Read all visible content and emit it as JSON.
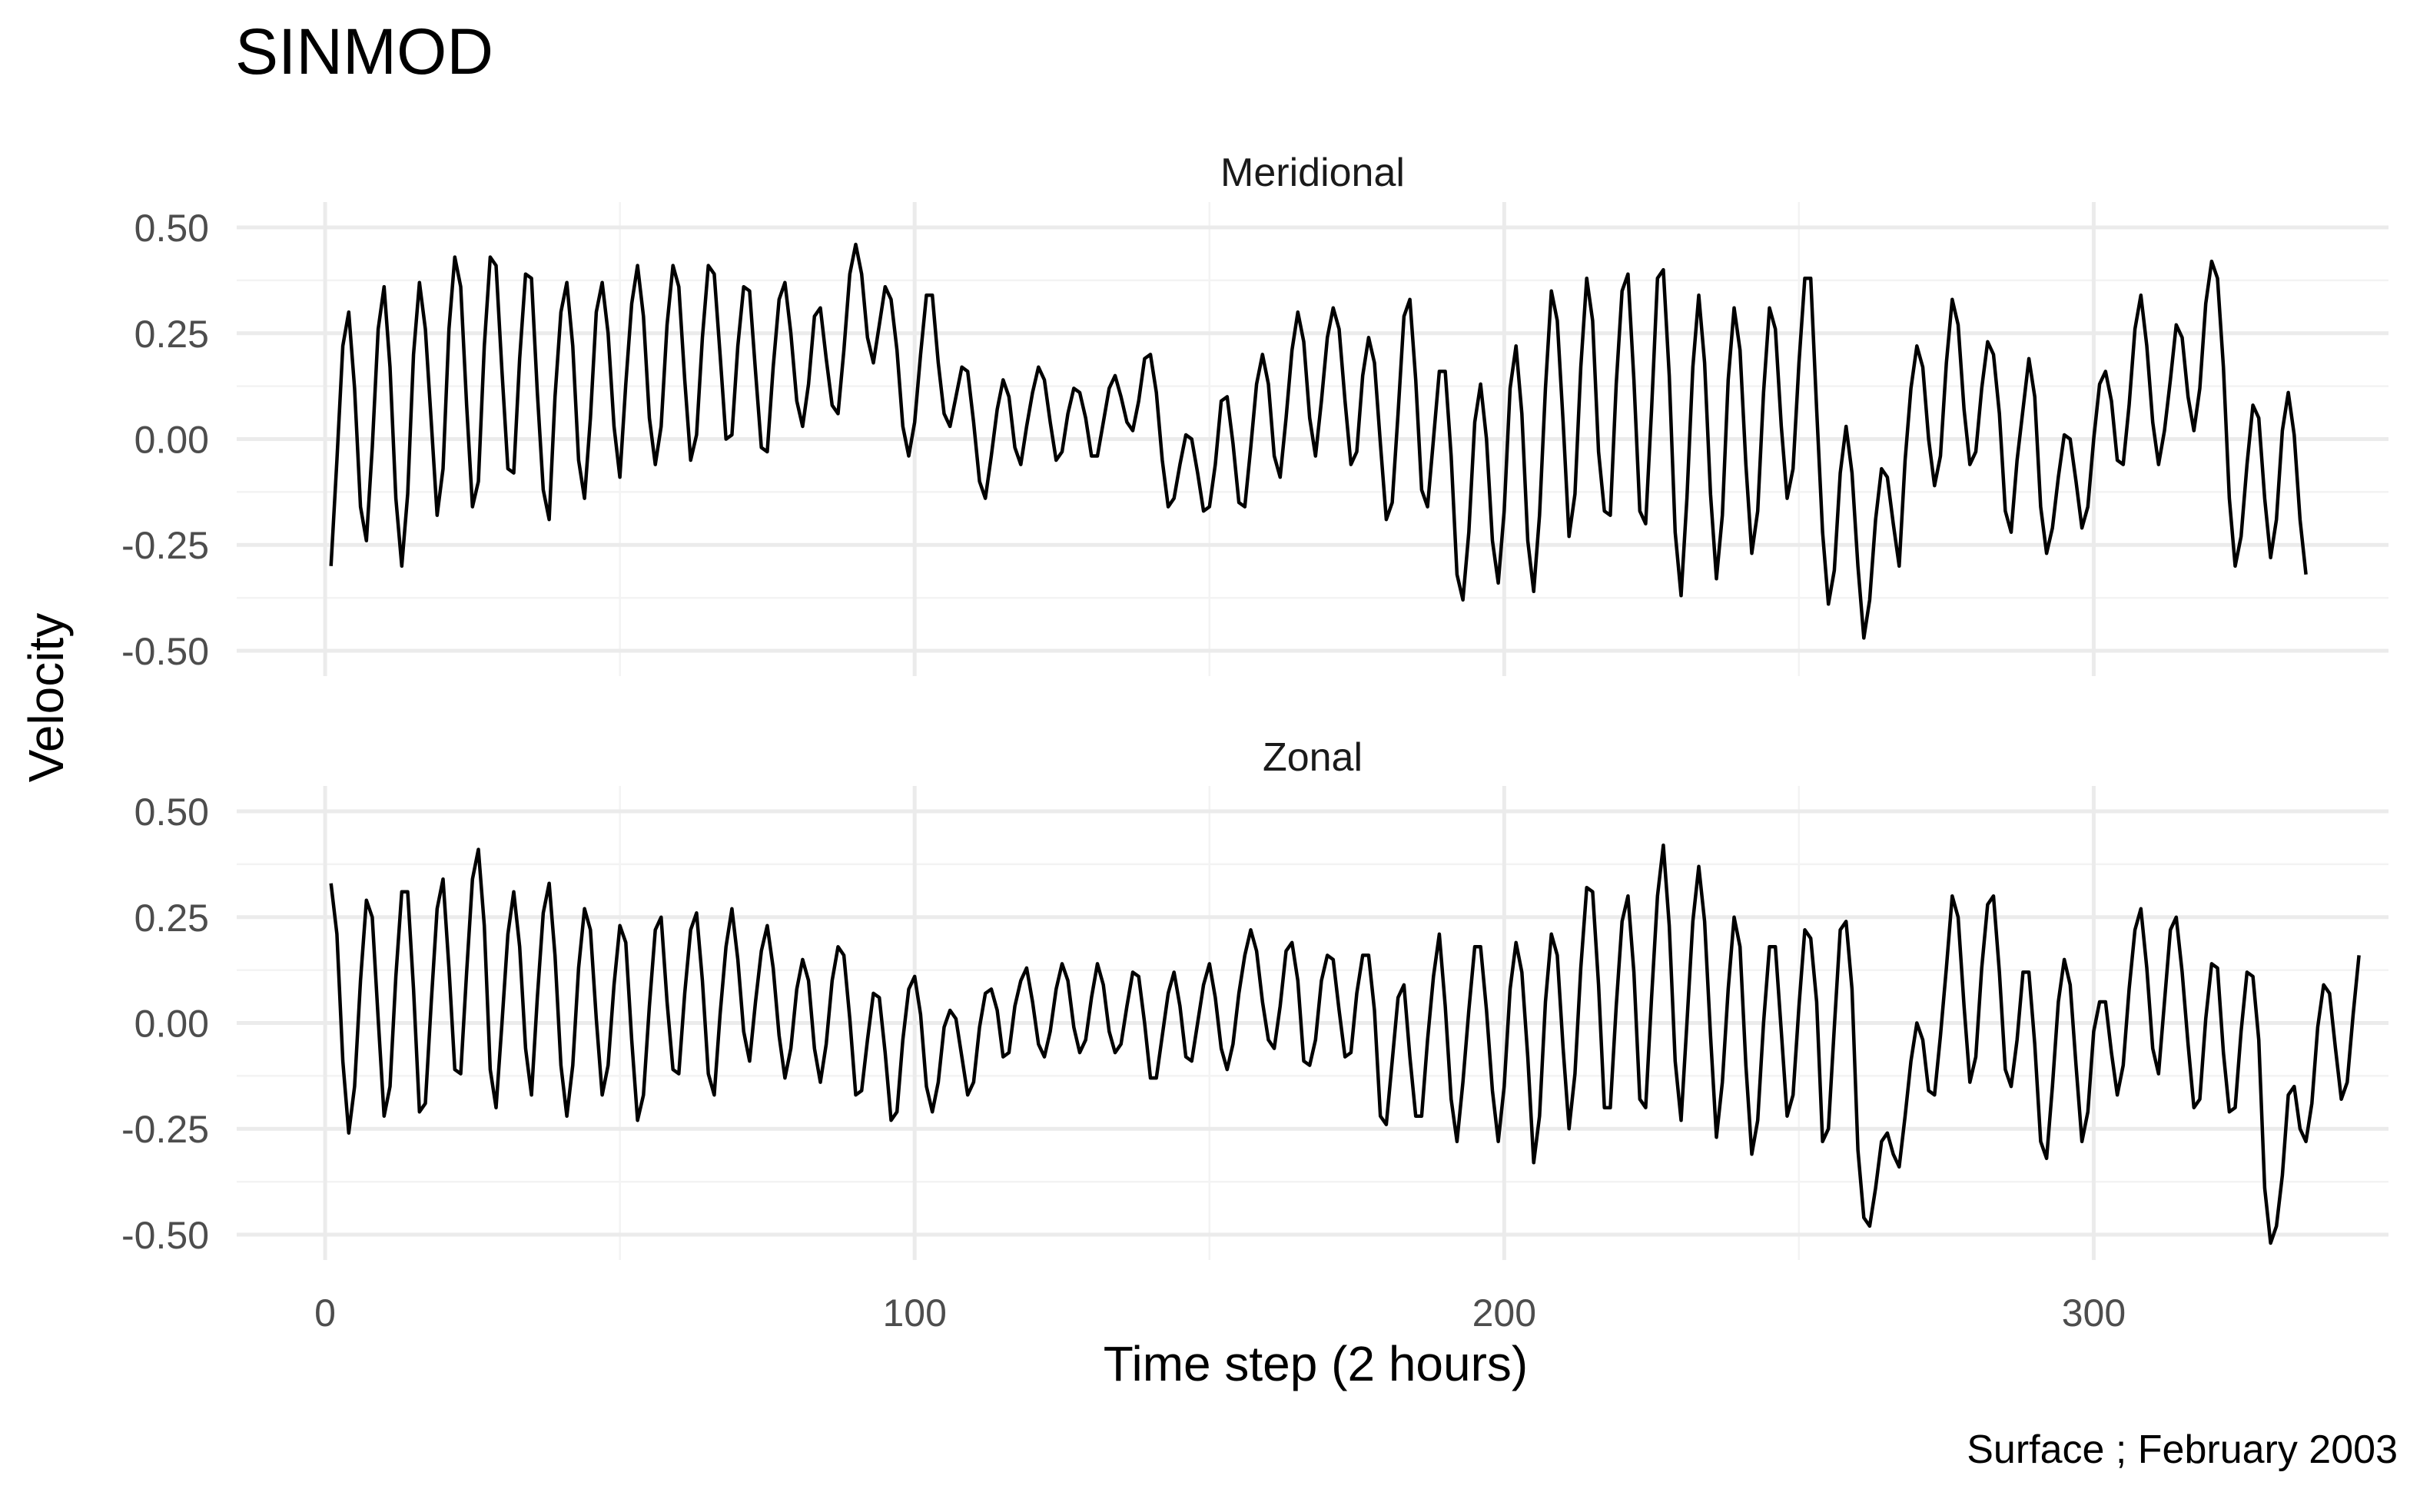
{
  "chart_data": {
    "type": "line",
    "title": "SINMOD",
    "xlabel": "Time step (2 hours)",
    "ylabel": "Velocity",
    "caption": "Surface ; February 2003",
    "xlim": [
      -15,
      350
    ],
    "ylim": [
      -0.56,
      0.56
    ],
    "x_ticks": [
      0,
      100,
      200,
      300
    ],
    "x_tick_labels": [
      "0",
      "100",
      "200",
      "300"
    ],
    "y_ticks": [
      -0.5,
      -0.25,
      0,
      0.25,
      0.5
    ],
    "y_tick_labels": [
      "-0.50",
      "-0.25",
      "0.00",
      "0.25",
      "0.50"
    ],
    "grid": true,
    "line_color": "#000000",
    "panels": [
      {
        "name": "Meridional",
        "x_start": 1,
        "values": [
          -0.3,
          -0.05,
          0.22,
          0.3,
          0.12,
          -0.16,
          -0.24,
          -0.02,
          0.26,
          0.36,
          0.17,
          -0.14,
          -0.3,
          -0.13,
          0.2,
          0.37,
          0.26,
          0.04,
          -0.18,
          -0.07,
          0.26,
          0.43,
          0.36,
          0.08,
          -0.16,
          -0.1,
          0.22,
          0.43,
          0.41,
          0.16,
          -0.07,
          -0.08,
          0.19,
          0.39,
          0.38,
          0.11,
          -0.12,
          -0.19,
          0.1,
          0.3,
          0.37,
          0.22,
          -0.05,
          -0.14,
          0.05,
          0.3,
          0.37,
          0.25,
          0.03,
          -0.09,
          0.13,
          0.32,
          0.41,
          0.29,
          0.05,
          -0.06,
          0.03,
          0.27,
          0.41,
          0.36,
          0.14,
          -0.05,
          0.01,
          0.24,
          0.41,
          0.39,
          0.2,
          0.0,
          0.01,
          0.22,
          0.36,
          0.35,
          0.16,
          -0.02,
          -0.03,
          0.17,
          0.33,
          0.37,
          0.25,
          0.09,
          0.03,
          0.13,
          0.29,
          0.31,
          0.19,
          0.08,
          0.06,
          0.21,
          0.39,
          0.46,
          0.39,
          0.24,
          0.18,
          0.27,
          0.36,
          0.33,
          0.21,
          0.03,
          -0.04,
          0.04,
          0.2,
          0.34,
          0.34,
          0.18,
          0.06,
          0.03,
          0.1,
          0.17,
          0.16,
          0.04,
          -0.1,
          -0.14,
          -0.04,
          0.07,
          0.14,
          0.1,
          -0.02,
          -0.06,
          0.03,
          0.11,
          0.17,
          0.14,
          0.04,
          -0.05,
          -0.03,
          0.06,
          0.12,
          0.11,
          0.05,
          -0.04,
          -0.04,
          0.04,
          0.12,
          0.15,
          0.1,
          0.04,
          0.02,
          0.09,
          0.19,
          0.2,
          0.11,
          -0.05,
          -0.16,
          -0.14,
          -0.06,
          0.01,
          0.0,
          -0.08,
          -0.17,
          -0.16,
          -0.06,
          0.09,
          0.1,
          -0.01,
          -0.15,
          -0.16,
          -0.02,
          0.13,
          0.2,
          0.13,
          -0.04,
          -0.09,
          0.05,
          0.21,
          0.3,
          0.23,
          0.05,
          -0.04,
          0.09,
          0.24,
          0.31,
          0.26,
          0.09,
          -0.06,
          -0.03,
          0.15,
          0.24,
          0.18,
          -0.01,
          -0.19,
          -0.15,
          0.06,
          0.29,
          0.33,
          0.14,
          -0.12,
          -0.16,
          0.0,
          0.16,
          0.16,
          -0.04,
          -0.32,
          -0.38,
          -0.22,
          0.04,
          0.13,
          0.0,
          -0.24,
          -0.34,
          -0.17,
          0.12,
          0.22,
          0.06,
          -0.24,
          -0.36,
          -0.18,
          0.12,
          0.35,
          0.28,
          0.04,
          -0.23,
          -0.13,
          0.17,
          0.38,
          0.28,
          -0.03,
          -0.17,
          -0.18,
          0.13,
          0.35,
          0.39,
          0.14,
          -0.17,
          -0.2,
          0.07,
          0.38,
          0.4,
          0.15,
          -0.22,
          -0.37,
          -0.14,
          0.17,
          0.34,
          0.18,
          -0.13,
          -0.33,
          -0.18,
          0.14,
          0.31,
          0.21,
          -0.06,
          -0.27,
          -0.17,
          0.11,
          0.31,
          0.26,
          0.03,
          -0.14,
          -0.07,
          0.18,
          0.38,
          0.38,
          0.07,
          -0.22,
          -0.39,
          -0.31,
          -0.08,
          0.03,
          -0.08,
          -0.3,
          -0.47,
          -0.38,
          -0.19,
          -0.07,
          -0.09,
          -0.2,
          -0.3,
          -0.05,
          0.12,
          0.22,
          0.17,
          0.0,
          -0.11,
          -0.04,
          0.18,
          0.33,
          0.27,
          0.07,
          -0.06,
          -0.03,
          0.12,
          0.23,
          0.2,
          0.06,
          -0.17,
          -0.22,
          -0.05,
          0.07,
          0.19,
          0.1,
          -0.16,
          -0.27,
          -0.21,
          -0.09,
          0.01,
          0.0,
          -0.1,
          -0.21,
          -0.16,
          0.0,
          0.13,
          0.16,
          0.09,
          -0.05,
          -0.06,
          0.08,
          0.26,
          0.34,
          0.22,
          0.04,
          -0.06,
          0.02,
          0.14,
          0.27,
          0.24,
          0.1,
          0.02,
          0.12,
          0.32,
          0.42,
          0.38,
          0.17,
          -0.14,
          -0.3,
          -0.23,
          -0.06,
          0.08,
          0.05,
          -0.14,
          -0.28,
          -0.19,
          0.02,
          0.11,
          0.01,
          -0.19,
          -0.32
        ]
      },
      {
        "name": "Zonal",
        "x_start": 1,
        "values": [
          0.33,
          0.21,
          -0.09,
          -0.26,
          -0.15,
          0.1,
          0.29,
          0.25,
          0.01,
          -0.22,
          -0.15,
          0.11,
          0.31,
          0.31,
          0.08,
          -0.21,
          -0.19,
          0.05,
          0.27,
          0.34,
          0.13,
          -0.11,
          -0.12,
          0.12,
          0.34,
          0.41,
          0.23,
          -0.11,
          -0.2,
          0.0,
          0.21,
          0.31,
          0.18,
          -0.06,
          -0.17,
          0.06,
          0.26,
          0.33,
          0.16,
          -0.1,
          -0.22,
          -0.1,
          0.13,
          0.27,
          0.22,
          0.01,
          -0.17,
          -0.1,
          0.09,
          0.23,
          0.19,
          -0.04,
          -0.23,
          -0.17,
          0.04,
          0.22,
          0.25,
          0.05,
          -0.11,
          -0.12,
          0.07,
          0.22,
          0.26,
          0.1,
          -0.12,
          -0.17,
          0.02,
          0.18,
          0.27,
          0.15,
          -0.02,
          -0.09,
          0.05,
          0.17,
          0.23,
          0.13,
          -0.03,
          -0.13,
          -0.06,
          0.08,
          0.15,
          0.1,
          -0.06,
          -0.14,
          -0.05,
          0.1,
          0.18,
          0.16,
          0.01,
          -0.17,
          -0.16,
          -0.04,
          0.07,
          0.06,
          -0.07,
          -0.23,
          -0.21,
          -0.04,
          0.08,
          0.11,
          0.02,
          -0.15,
          -0.21,
          -0.14,
          -0.01,
          0.03,
          0.01,
          -0.08,
          -0.17,
          -0.14,
          -0.01,
          0.07,
          0.08,
          0.03,
          -0.08,
          -0.07,
          0.04,
          0.1,
          0.13,
          0.05,
          -0.05,
          -0.08,
          -0.02,
          0.08,
          0.14,
          0.1,
          -0.01,
          -0.07,
          -0.04,
          0.06,
          0.14,
          0.09,
          -0.02,
          -0.07,
          -0.05,
          0.04,
          0.12,
          0.11,
          0.0,
          -0.13,
          -0.13,
          -0.03,
          0.07,
          0.12,
          0.04,
          -0.08,
          -0.09,
          0.0,
          0.09,
          0.14,
          0.06,
          -0.06,
          -0.11,
          -0.05,
          0.07,
          0.16,
          0.22,
          0.17,
          0.05,
          -0.04,
          -0.06,
          0.04,
          0.17,
          0.19,
          0.1,
          -0.09,
          -0.1,
          -0.04,
          0.1,
          0.16,
          0.15,
          0.03,
          -0.08,
          -0.07,
          0.07,
          0.16,
          0.16,
          0.03,
          -0.22,
          -0.24,
          -0.09,
          0.06,
          0.09,
          -0.08,
          -0.22,
          -0.22,
          -0.04,
          0.11,
          0.21,
          0.04,
          -0.18,
          -0.28,
          -0.14,
          0.03,
          0.18,
          0.18,
          0.03,
          -0.16,
          -0.28,
          -0.15,
          0.08,
          0.19,
          0.12,
          -0.08,
          -0.33,
          -0.22,
          0.05,
          0.21,
          0.16,
          -0.06,
          -0.25,
          -0.12,
          0.13,
          0.32,
          0.31,
          0.09,
          -0.2,
          -0.2,
          0.04,
          0.24,
          0.3,
          0.12,
          -0.18,
          -0.2,
          0.06,
          0.3,
          0.42,
          0.23,
          -0.09,
          -0.23,
          0.0,
          0.24,
          0.37,
          0.24,
          -0.03,
          -0.27,
          -0.14,
          0.08,
          0.25,
          0.18,
          -0.1,
          -0.31,
          -0.23,
          0.0,
          0.18,
          0.18,
          -0.02,
          -0.22,
          -0.17,
          0.04,
          0.22,
          0.2,
          0.05,
          -0.28,
          -0.25,
          -0.01,
          0.22,
          0.24,
          0.08,
          -0.3,
          -0.46,
          -0.48,
          -0.39,
          -0.28,
          -0.26,
          -0.31,
          -0.34,
          -0.22,
          -0.09,
          0.0,
          -0.04,
          -0.16,
          -0.17,
          -0.03,
          0.13,
          0.3,
          0.25,
          0.04,
          -0.14,
          -0.08,
          0.13,
          0.28,
          0.3,
          0.12,
          -0.11,
          -0.15,
          -0.04,
          0.12,
          0.12,
          -0.05,
          -0.28,
          -0.32,
          -0.15,
          0.05,
          0.15,
          0.09,
          -0.1,
          -0.28,
          -0.21,
          -0.02,
          0.05,
          0.05,
          -0.07,
          -0.17,
          -0.1,
          0.08,
          0.22,
          0.27,
          0.13,
          -0.06,
          -0.12,
          0.05,
          0.22,
          0.25,
          0.12,
          -0.05,
          -0.2,
          -0.18,
          0.01,
          0.14,
          0.13,
          -0.07,
          -0.21,
          -0.2,
          -0.02,
          0.12,
          0.11,
          -0.04,
          -0.39,
          -0.52,
          -0.48,
          -0.36,
          -0.17,
          -0.15,
          -0.25,
          -0.28,
          -0.19,
          -0.01,
          0.09,
          0.07,
          -0.06,
          -0.18,
          -0.14,
          0.02,
          0.16
        ]
      }
    ]
  }
}
